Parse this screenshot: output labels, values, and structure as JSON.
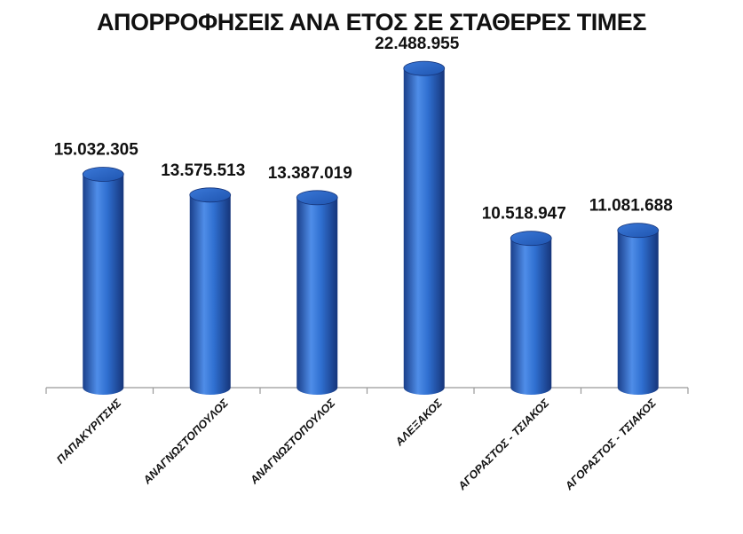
{
  "chart_data": {
    "type": "bar",
    "style": "3d-cylinder",
    "title": "ΑΠΟΡΡΟΦΗΣΕΙΣ ΑΝΑ ΕΤΟΣ ΣΕ ΣΤΑΘΕΡΕΣ ΤΙΜΕΣ",
    "categories": [
      "ΠΑΠΑΚΥΡΙΤΣΗΣ",
      "ΑΝΑΓΝΩΣΤΟΠΟΥΛΟΣ",
      "ΑΝΑΓΝΩΣΤΟΠΟΥΛΟΣ",
      "ΑΛΕΞΑΚΟΣ",
      "ΑΓΟΡΑΣΤΟΣ - ΤΣΙΑΚΟΣ",
      "ΑΓΟΡΑΣΤΟΣ - ΤΣΙΑΚΟΣ"
    ],
    "values": [
      15032305,
      13575513,
      13387019,
      22488955,
      10518947,
      11081688
    ],
    "data_labels": [
      "15.032.305",
      "13.575.513",
      "13.387.019",
      "22.488.955",
      "10.518.947",
      "11.081.688"
    ],
    "xlabel": "",
    "ylabel": "",
    "ylim": [
      0,
      25000000
    ],
    "grid": false,
    "y_axis_visible": false,
    "bar_color": "#2f6fd0"
  }
}
